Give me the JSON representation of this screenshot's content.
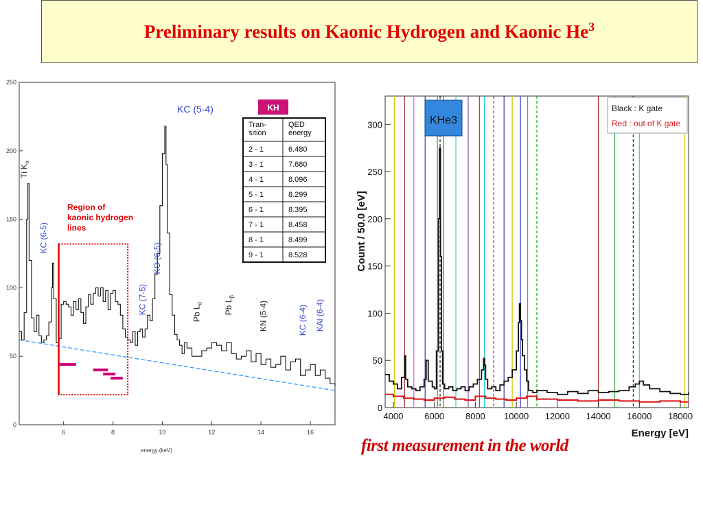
{
  "title": {
    "text": "Preliminary results on Kaonic Hydrogen and Kaonic He",
    "superscript": "3"
  },
  "caption": "first measurement in the world",
  "chart_data": [
    {
      "type": "line",
      "xlabel": "energy (keV)",
      "xlim": [
        4.2,
        17
      ],
      "ylim": [
        0,
        250
      ],
      "xticks": [
        6,
        8,
        10,
        12,
        14,
        16
      ],
      "yticks": [
        0,
        50,
        100,
        150,
        200,
        250
      ],
      "series": [
        {
          "x": [
            4.2,
            4.3,
            4.4,
            4.5,
            4.55,
            4.6,
            4.7,
            4.8,
            4.9,
            5.0,
            5.1,
            5.2,
            5.3,
            5.4,
            5.5,
            5.55,
            5.6,
            5.7,
            5.8,
            5.9,
            6.0,
            6.1,
            6.2,
            6.3,
            6.4,
            6.5,
            6.6,
            6.7,
            6.8,
            6.9,
            7.0,
            7.1,
            7.2,
            7.3,
            7.4,
            7.5,
            7.6,
            7.7,
            7.8,
            7.9,
            8.0,
            8.1,
            8.2,
            8.3,
            8.4,
            8.5,
            8.6,
            8.7,
            8.8,
            8.9,
            9.0,
            9.1,
            9.2,
            9.3,
            9.4,
            9.5,
            9.6,
            9.7,
            9.8,
            9.9,
            10.0,
            10.1,
            10.15,
            10.2,
            10.3,
            10.4,
            10.5,
            10.6,
            10.7,
            10.8,
            10.9,
            11.0,
            11.2,
            11.4,
            11.6,
            11.8,
            12.0,
            12.2,
            12.4,
            12.6,
            12.8,
            13.0,
            13.2,
            13.4,
            13.6,
            13.8,
            14.0,
            14.2,
            14.4,
            14.6,
            14.8,
            15.0,
            15.2,
            15.4,
            15.6,
            15.8,
            16.0,
            16.2,
            16.4,
            16.6,
            16.8,
            17.0
          ],
          "values": [
            68,
            62,
            82,
            150,
            176,
            120,
            78,
            68,
            80,
            65,
            60,
            62,
            65,
            75,
            100,
            118,
            92,
            60,
            63,
            88,
            90,
            88,
            86,
            80,
            90,
            84,
            92,
            82,
            74,
            86,
            95,
            88,
            96,
            100,
            94,
            100,
            90,
            98,
            84,
            96,
            98,
            90,
            88,
            80,
            70,
            64,
            62,
            60,
            68,
            58,
            68,
            70,
            64,
            70,
            80,
            76,
            92,
            110,
            125,
            160,
            198,
            218,
            190,
            140,
            95,
            80,
            66,
            62,
            58,
            52,
            60,
            56,
            50,
            50,
            54,
            56,
            60,
            58,
            54,
            60,
            52,
            48,
            50,
            54,
            46,
            52,
            44,
            48,
            42,
            44,
            50,
            40,
            46,
            48,
            36,
            40,
            44,
            36,
            40,
            34,
            30,
            28
          ]
        }
      ],
      "baseline": {
        "x": [
          4.2,
          17
        ],
        "values": [
          62,
          25
        ]
      },
      "region_label": [
        "Region of",
        "kaonic hydrogen",
        "lines"
      ],
      "region": {
        "x": [
          5.8,
          8.6
        ],
        "y": [
          22,
          132
        ]
      },
      "annotations": [
        {
          "text": "Ti K",
          "sub": "α",
          "x": 4.5,
          "y": 180,
          "color": "#333333"
        },
        {
          "text": "KC (6-5)",
          "x": 5.3,
          "y": 125,
          "color": "#3344cc"
        },
        {
          "text": "KC (7-5)",
          "x": 9.3,
          "y": 80,
          "color": "#3344cc"
        },
        {
          "text": "KO (6-5)",
          "x": 9.9,
          "y": 110,
          "color": "#3344cc"
        },
        {
          "text": "Pb L",
          "sub": "α",
          "x": 11.5,
          "y": 75,
          "color": "#222222"
        },
        {
          "text": "Pb L",
          "sub": "β",
          "x": 12.8,
          "y": 80,
          "color": "#222222"
        },
        {
          "text": "KN (5-4)",
          "x": 14.2,
          "y": 68,
          "color": "#222222"
        },
        {
          "text": "KC (6-4)",
          "x": 15.8,
          "y": 65,
          "color": "#3344cc"
        },
        {
          "text": "KAl (6-4)",
          "x": 16.5,
          "y": 68,
          "color": "#3344cc"
        },
        {
          "text": "KC (5-4)",
          "x": 10.6,
          "y": 228,
          "color": "#3344cc"
        }
      ],
      "markers": [
        {
          "x0": 5.8,
          "x1": 6.5,
          "y": 44
        },
        {
          "x0": 7.2,
          "x1": 7.8,
          "y": 40
        },
        {
          "x0": 7.6,
          "x1": 8.1,
          "y": 37
        },
        {
          "x0": 7.9,
          "x1": 8.4,
          "y": 34
        }
      ],
      "kh_table": {
        "badge": "KH",
        "header": [
          "Tran-\nsition",
          "QED\nenergy"
        ],
        "rows": [
          [
            "2 - 1",
            "6.480"
          ],
          [
            "3 - 1",
            "7.680"
          ],
          [
            "4 - 1",
            "8.096"
          ],
          [
            "5 - 1",
            "8.299"
          ],
          [
            "6 - 1",
            "8.395"
          ],
          [
            "7 - 1",
            "8.458"
          ],
          [
            "8 - 1",
            "8.499"
          ],
          [
            "9 - 1",
            "8.528"
          ]
        ]
      }
    },
    {
      "type": "line",
      "xlabel": "Energy [eV]",
      "ylabel": "Count / 50.0 [eV]",
      "xlim": [
        3600,
        18400
      ],
      "ylim": [
        0,
        330
      ],
      "xticks": [
        4000,
        6000,
        8000,
        10000,
        12000,
        14000,
        16000,
        18000
      ],
      "yticks": [
        0,
        50,
        100,
        150,
        200,
        250,
        300
      ],
      "legend": {
        "lines": [
          "Black : K gate",
          "Red : out of K gate"
        ],
        "colors": [
          "#222222",
          "#dd2222"
        ],
        "placement": "top-right"
      },
      "annotation_box": "KHe3",
      "vlines": [
        {
          "x": 4050,
          "color": "#cccc00",
          "dash": false
        },
        {
          "x": 4550,
          "color": "#aa3333",
          "dash": false
        },
        {
          "x": 5000,
          "color": "#cc66cc",
          "dash": false
        },
        {
          "x": 5550,
          "color": "#3333aa",
          "dash": false
        },
        {
          "x": 6150,
          "color": "#33aa33",
          "dash": false
        },
        {
          "x": 6280,
          "color": "#222222",
          "dash": true
        },
        {
          "x": 6450,
          "color": "#00aa00",
          "dash": false
        },
        {
          "x": 7050,
          "color": "#33cccc",
          "dash": false
        },
        {
          "x": 7650,
          "color": "#8844aa",
          "dash": false
        },
        {
          "x": 8200,
          "color": "#cc3333",
          "dash": false
        },
        {
          "x": 8450,
          "color": "#00bbbb",
          "dash": false
        },
        {
          "x": 8900,
          "color": "#662288",
          "dash": true
        },
        {
          "x": 9400,
          "color": "#3333aa",
          "dash": false
        },
        {
          "x": 9800,
          "color": "#cccc00",
          "dash": false
        },
        {
          "x": 10200,
          "color": "#3333cc",
          "dash": false
        },
        {
          "x": 10550,
          "color": "#00bbbb",
          "dash": false
        },
        {
          "x": 11000,
          "color": "#00aa00",
          "dash": true
        },
        {
          "x": 14000,
          "color": "#aa3333",
          "dash": false
        },
        {
          "x": 14800,
          "color": "#33aa33",
          "dash": false
        },
        {
          "x": 15700,
          "color": "#222222",
          "dash": true
        },
        {
          "x": 16000,
          "color": "#33cccc",
          "dash": false
        },
        {
          "x": 18200,
          "color": "#cccc00",
          "dash": false
        }
      ],
      "series": [
        {
          "name": "Black : K gate",
          "color": "#111111",
          "x": [
            3600,
            3800,
            4000,
            4200,
            4400,
            4550,
            4600,
            4700,
            4900,
            5100,
            5300,
            5500,
            5600,
            5700,
            5900,
            6000,
            6100,
            6200,
            6250,
            6300,
            6350,
            6400,
            6500,
            6700,
            6900,
            7100,
            7300,
            7500,
            7700,
            7900,
            8100,
            8300,
            8400,
            8450,
            8500,
            8600,
            8800,
            9000,
            9200,
            9400,
            9600,
            9800,
            10000,
            10100,
            10150,
            10200,
            10250,
            10300,
            10400,
            10500,
            10600,
            10800,
            11000,
            11500,
            12000,
            12500,
            13000,
            13500,
            14000,
            14500,
            15000,
            15500,
            15800,
            16000,
            16200,
            16500,
            17000,
            17500,
            18000,
            18400
          ],
          "values": [
            35,
            28,
            25,
            20,
            32,
            55,
            30,
            22,
            20,
            18,
            22,
            30,
            50,
            28,
            22,
            20,
            60,
            200,
            275,
            160,
            60,
            25,
            20,
            22,
            18,
            20,
            22,
            18,
            22,
            25,
            30,
            40,
            52,
            45,
            30,
            20,
            22,
            18,
            24,
            28,
            32,
            40,
            60,
            90,
            110,
            92,
            72,
            55,
            40,
            28,
            18,
            16,
            18,
            16,
            14,
            17,
            15,
            18,
            16,
            17,
            18,
            22,
            25,
            28,
            24,
            20,
            17,
            15,
            14,
            16
          ]
        },
        {
          "name": "Red : out of K gate",
          "color": "#dd1111",
          "x": [
            3600,
            4000,
            4500,
            5000,
            5500,
            6000,
            6500,
            7000,
            7500,
            8000,
            8500,
            9000,
            9500,
            10000,
            10500,
            11000,
            12000,
            13000,
            14000,
            15000,
            16000,
            17000,
            18000,
            18400
          ],
          "values": [
            14,
            12,
            10,
            9,
            8,
            10,
            11,
            9,
            8,
            12,
            10,
            9,
            8,
            10,
            12,
            9,
            8,
            7,
            8,
            7,
            6,
            7,
            6,
            6
          ]
        }
      ]
    }
  ]
}
